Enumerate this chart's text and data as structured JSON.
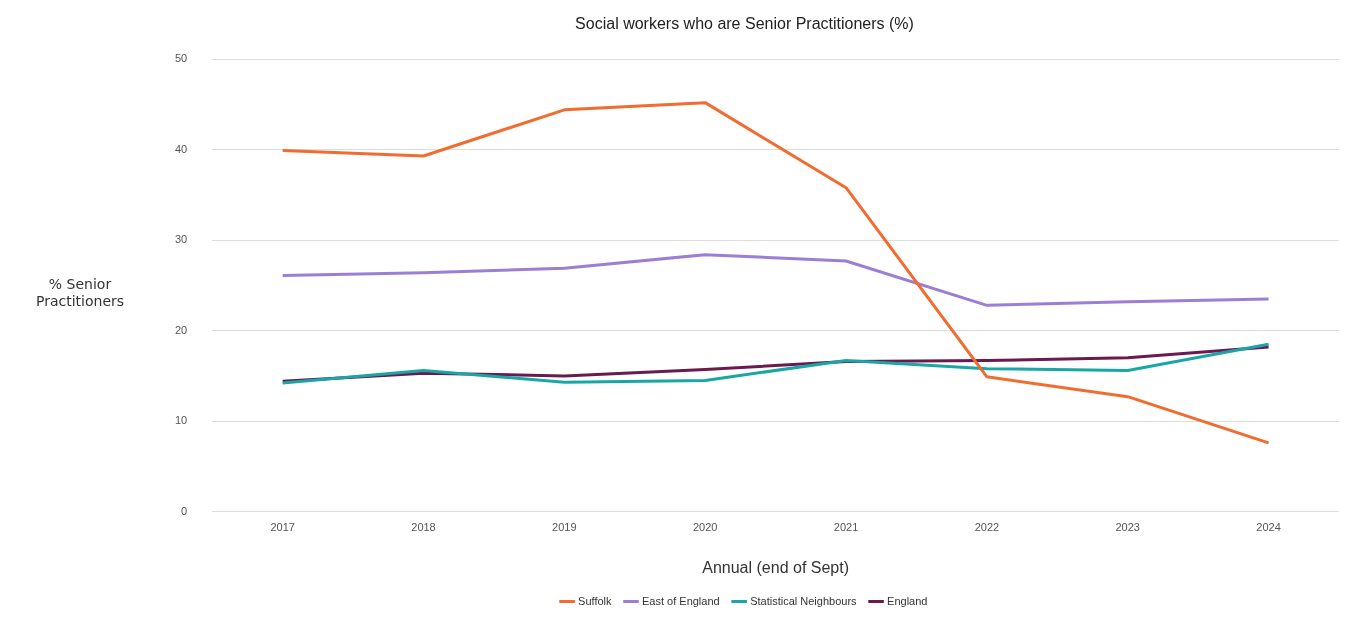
{
  "chart_data": {
    "type": "line",
    "title": "Social workers who are Senior Practitioners (%)",
    "xlabel": "Annual (end of Sept)",
    "ylabel": "% Senior Practitioners",
    "categories": [
      "2017",
      "2018",
      "2019",
      "2020",
      "2021",
      "2022",
      "2023",
      "2024"
    ],
    "series": [
      {
        "name": "Suffolk",
        "color": "#f26b2f",
        "values": [
          39.9,
          39.3,
          44.4,
          45.2,
          35.8,
          14.9,
          12.7,
          7.6
        ]
      },
      {
        "name": "East of England",
        "color": "#9b7fd4",
        "values": [
          26.1,
          26.4,
          26.9,
          28.4,
          27.7,
          22.8,
          23.2,
          23.5
        ]
      },
      {
        "name": "Statistical Neighbours",
        "color": "#1aa6a6",
        "values": [
          14.2,
          15.6,
          14.3,
          14.5,
          16.7,
          15.8,
          15.6,
          18.5
        ]
      },
      {
        "name": "England",
        "color": "#6b1a4f",
        "values": [
          14.4,
          15.3,
          15.0,
          15.7,
          16.6,
          16.7,
          17.0,
          18.2
        ]
      }
    ],
    "ylim": [
      0,
      50
    ],
    "yticks": [
      0,
      10,
      20,
      30,
      40,
      50
    ],
    "grid": "y",
    "legend": "bottom",
    "marker": "none",
    "line_style": "solid"
  }
}
